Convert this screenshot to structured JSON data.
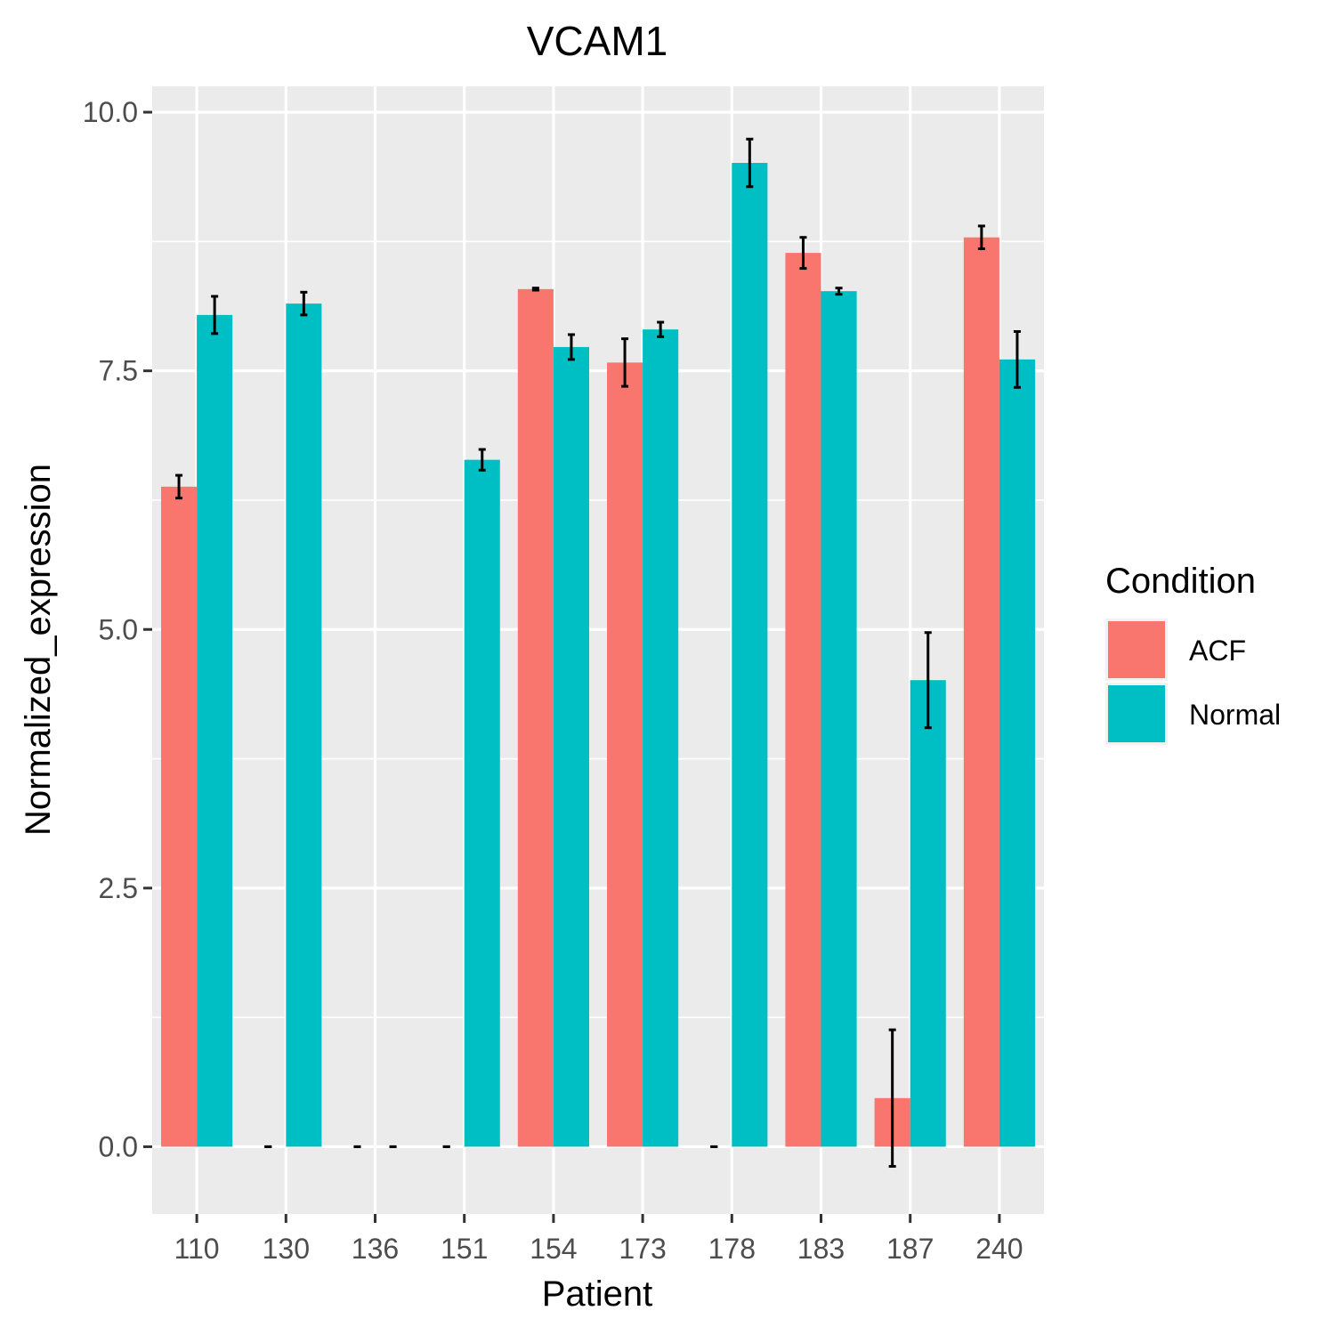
{
  "chart_data": {
    "type": "bar",
    "title": "VCAM1",
    "xlabel": "Patient",
    "ylabel": "Normalized_expression",
    "ylim": [
      -0.65,
      10.25
    ],
    "yticks": [
      "0.0",
      "2.5",
      "5.0",
      "7.5",
      "10.0"
    ],
    "categories": [
      "110",
      "130",
      "136",
      "151",
      "154",
      "173",
      "178",
      "183",
      "187",
      "240"
    ],
    "grid": true,
    "legend": {
      "title": "Condition",
      "position": "right"
    },
    "series": [
      {
        "name": "ACF",
        "color": "#F8766D",
        "values": [
          6.38,
          0,
          0,
          0,
          8.29,
          7.58,
          0,
          8.64,
          0.47,
          8.79
        ],
        "error": [
          0.11,
          0,
          0,
          0,
          0.01,
          0.23,
          0,
          0.15,
          0.66,
          0.11
        ]
      },
      {
        "name": "Normal",
        "color": "#00BFC4",
        "values": [
          8.04,
          8.15,
          0,
          6.64,
          7.73,
          7.9,
          9.51,
          8.27,
          4.51,
          7.61
        ],
        "error": [
          0.18,
          0.11,
          0,
          0.1,
          0.12,
          0.07,
          0.23,
          0.03,
          0.46,
          0.27
        ]
      }
    ]
  }
}
